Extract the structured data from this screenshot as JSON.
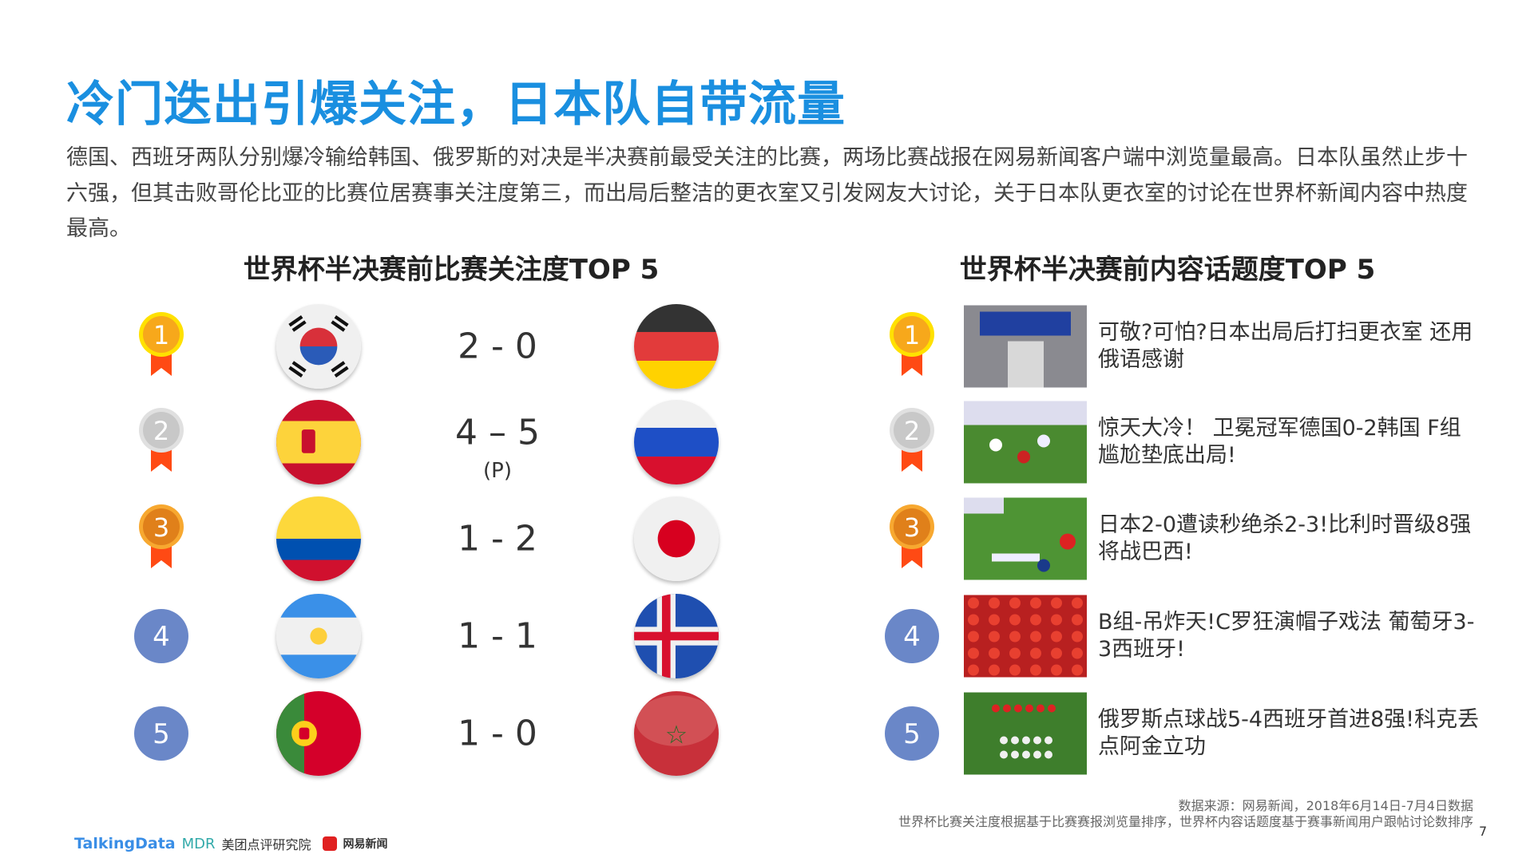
{
  "title": "冷门迭出引爆关注，日本队自带流量",
  "description": "德国、西班牙两队分别爆冷输给韩国、俄罗斯的对决是半决赛前最受关注的比赛，两场比赛战报在网易新闻客户端中浏览量最高。日本队虽然止步十六强，但其击败哥伦比亚的比赛位居赛事关注度第三，而出局后整洁的更衣室又引发网友大讨论，关于日本队更衣室的讨论在世界杯新闻内容中热度最高。",
  "left": {
    "title": "世界杯半决赛前比赛关注度TOP 5",
    "rows": [
      {
        "rank": "1",
        "home": "korea",
        "away": "germany",
        "score": "2 - 0",
        "note": ""
      },
      {
        "rank": "2",
        "home": "spain",
        "away": "russia",
        "score": "4 – 5",
        "note": "(P)"
      },
      {
        "rank": "3",
        "home": "colombia",
        "away": "japan",
        "score": "1 - 2",
        "note": ""
      },
      {
        "rank": "4",
        "home": "argentina",
        "away": "iceland",
        "score": "1 - 1",
        "note": ""
      },
      {
        "rank": "5",
        "home": "portugal",
        "away": "morocco",
        "score": "1 - 0",
        "note": ""
      }
    ]
  },
  "right": {
    "title": "世界杯半决赛前内容话题度TOP 5",
    "rows": [
      {
        "rank": "1",
        "headline": "可敬?可怕?日本出局后打扫更衣室 还用俄语感谢"
      },
      {
        "rank": "2",
        "headline": "惊天大冷！ 卫冕冠军德国0-2韩国 F组尴尬垫底出局!"
      },
      {
        "rank": "3",
        "headline": "日本2-0遭读秒绝杀2-3!比利时晋级8强将战巴西!"
      },
      {
        "rank": "4",
        "headline": "B组-吊炸天!C罗狂演帽子戏法 葡萄牙3-3西班牙!"
      },
      {
        "rank": "5",
        "headline": "俄罗斯点球战5-4西班牙首进8强!科克丢点阿金立功"
      }
    ]
  },
  "footer": {
    "source": "数据来源：网易新闻，2018年6月14日-7月4日数据",
    "method": "世界杯比赛关注度根据基于比赛赛报浏览量排序，世界杯内容话题度基于赛事新闻用户跟帖讨论数排序",
    "page": "7",
    "logos": {
      "talkingdata": "TalkingData",
      "mdr": "MDR",
      "meituan": "美团点评研究院",
      "netease": "网易新闻"
    }
  },
  "colors": {
    "title": "#1a8fe0",
    "gold": "#f7a81b",
    "silver": "#c8c8c8",
    "bronze": "#e0801a",
    "ribbon": "#ff4a14",
    "rank_blue": "#6a87c8"
  }
}
